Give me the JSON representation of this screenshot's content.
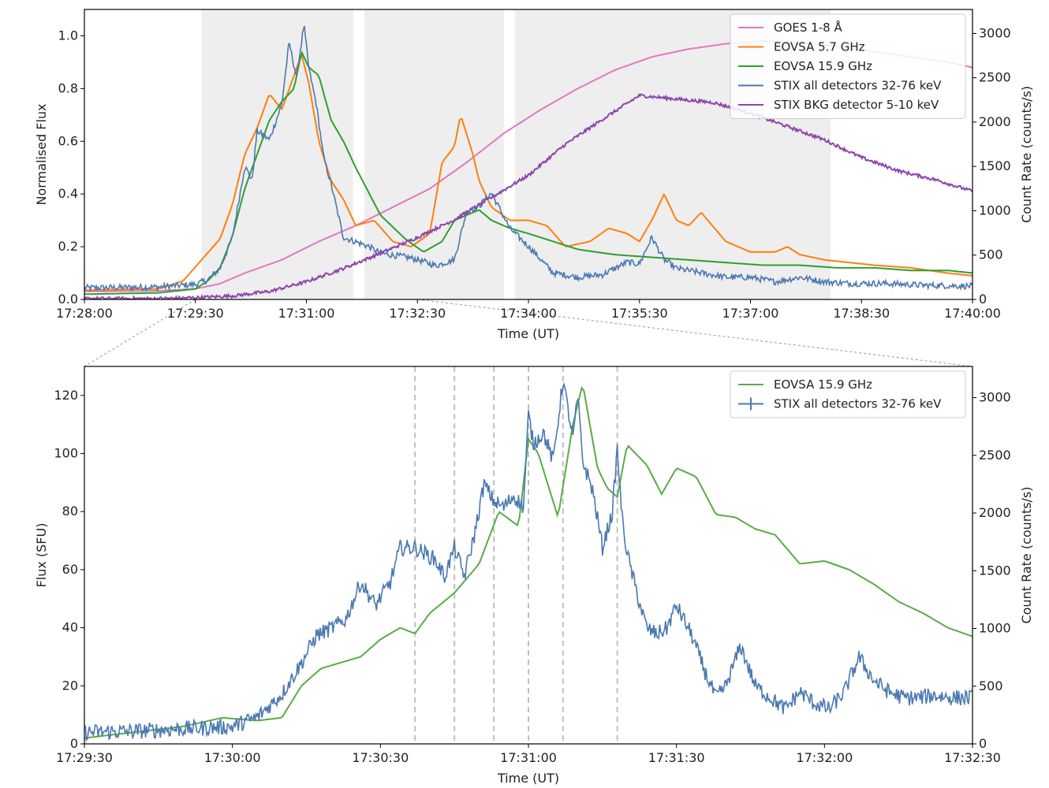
{
  "chart_data": [
    {
      "type": "line",
      "xlabel": "Time (UT)",
      "ylabel": "Normalised Flux",
      "y2label": "Count Rate (counts/s)",
      "x_ticks": [
        "17:28:00",
        "17:29:30",
        "17:31:00",
        "17:32:30",
        "17:34:00",
        "17:35:30",
        "17:37:00",
        "17:38:30",
        "17:40:00"
      ],
      "x_tick_seconds": [
        0,
        90,
        180,
        270,
        360,
        450,
        540,
        630,
        720
      ],
      "xlim_seconds": [
        0,
        720
      ],
      "y_ticks": [
        "0.0",
        "0.2",
        "0.4",
        "0.6",
        "0.8",
        "1.0"
      ],
      "y_tick_values": [
        0,
        0.2,
        0.4,
        0.6,
        0.8,
        1.0
      ],
      "ylim": [
        0,
        1.1
      ],
      "y2_ticks": [
        "0",
        "500",
        "1000",
        "1500",
        "2000",
        "2500",
        "3000"
      ],
      "y2_tick_values": [
        0,
        500,
        1000,
        1500,
        2000,
        2500,
        3000
      ],
      "y2lim": [
        0,
        3270
      ],
      "legend_position": "top-right",
      "shaded_intervals_seconds": [
        [
          95,
          218
        ],
        [
          227,
          340
        ],
        [
          349,
          605
        ]
      ],
      "series": [
        {
          "name": "GOES 1-8 Å",
          "color": "#e377c2",
          "axis": "left",
          "x": [
            0,
            60,
            90,
            110,
            130,
            160,
            190,
            220,
            250,
            280,
            310,
            340,
            370,
            400,
            430,
            460,
            490,
            520,
            550,
            580,
            610,
            640,
            670,
            700,
            720
          ],
          "y": [
            0.03,
            0.033,
            0.04,
            0.06,
            0.1,
            0.15,
            0.22,
            0.28,
            0.35,
            0.42,
            0.52,
            0.63,
            0.72,
            0.8,
            0.87,
            0.92,
            0.95,
            0.97,
            0.98,
            0.975,
            0.96,
            0.94,
            0.92,
            0.9,
            0.88
          ]
        },
        {
          "name": "EOVSA 5.7 GHz",
          "color": "#ff7f0e",
          "axis": "left",
          "x": [
            0,
            60,
            80,
            95,
            110,
            120,
            130,
            140,
            150,
            160,
            170,
            176,
            182,
            190,
            200,
            210,
            220,
            235,
            250,
            265,
            280,
            290,
            300,
            305,
            315,
            320,
            330,
            345,
            360,
            375,
            390,
            410,
            425,
            440,
            450,
            460,
            470,
            480,
            490,
            500,
            520,
            540,
            560,
            570,
            580,
            600,
            620,
            640,
            670,
            700,
            720
          ],
          "y": [
            0.035,
            0.04,
            0.07,
            0.15,
            0.23,
            0.36,
            0.55,
            0.65,
            0.78,
            0.72,
            0.85,
            0.93,
            0.82,
            0.6,
            0.45,
            0.38,
            0.28,
            0.3,
            0.22,
            0.2,
            0.25,
            0.52,
            0.58,
            0.7,
            0.55,
            0.45,
            0.35,
            0.3,
            0.3,
            0.28,
            0.2,
            0.22,
            0.27,
            0.25,
            0.22,
            0.3,
            0.4,
            0.3,
            0.28,
            0.33,
            0.22,
            0.18,
            0.18,
            0.2,
            0.17,
            0.15,
            0.14,
            0.13,
            0.12,
            0.1,
            0.09
          ]
        },
        {
          "name": "EOVSA 15.9 GHz",
          "color": "#2ca02c",
          "axis": "left",
          "x": [
            0,
            60,
            90,
            100,
            110,
            120,
            130,
            140,
            150,
            160,
            170,
            176,
            182,
            190,
            200,
            210,
            220,
            240,
            260,
            275,
            290,
            300,
            310,
            320,
            330,
            345,
            360,
            380,
            400,
            430,
            460,
            490,
            520,
            550,
            580,
            610,
            640,
            670,
            700,
            720
          ],
          "y": [
            0.02,
            0.025,
            0.04,
            0.07,
            0.12,
            0.24,
            0.42,
            0.55,
            0.68,
            0.75,
            0.8,
            0.94,
            0.88,
            0.85,
            0.68,
            0.6,
            0.5,
            0.32,
            0.23,
            0.18,
            0.22,
            0.3,
            0.32,
            0.34,
            0.3,
            0.27,
            0.25,
            0.22,
            0.19,
            0.17,
            0.16,
            0.15,
            0.14,
            0.13,
            0.13,
            0.12,
            0.12,
            0.11,
            0.11,
            0.1
          ]
        },
        {
          "name": "STIX all detectors 32-76 keV",
          "color": "#4a79b0",
          "axis": "right",
          "x": [
            0,
            60,
            90,
            100,
            110,
            120,
            130,
            136,
            140,
            150,
            160,
            166,
            172,
            178,
            182,
            188,
            194,
            200,
            210,
            220,
            230,
            240,
            250,
            260,
            270,
            285,
            300,
            310,
            320,
            330,
            345,
            360,
            380,
            400,
            420,
            440,
            450,
            460,
            470,
            480,
            500,
            520,
            540,
            560,
            580,
            600,
            620,
            650,
            680,
            720
          ],
          "y": [
            130,
            140,
            170,
            220,
            350,
            700,
            1500,
            1350,
            1900,
            1800,
            2200,
            2900,
            2500,
            3100,
            2600,
            2200,
            1600,
            1300,
            700,
            650,
            600,
            520,
            500,
            480,
            450,
            380,
            450,
            1000,
            1050,
            1200,
            800,
            600,
            300,
            250,
            280,
            420,
            400,
            700,
            450,
            350,
            300,
            250,
            250,
            200,
            250,
            200,
            180,
            180,
            160,
            150
          ]
        },
        {
          "name": "STIX BKG detector 5-10 keV",
          "color": "#8e44ad",
          "axis": "right",
          "x": [
            0,
            60,
            90,
            120,
            150,
            180,
            210,
            240,
            270,
            300,
            330,
            360,
            390,
            420,
            450,
            480,
            510,
            540,
            570,
            600,
            630,
            660,
            690,
            720
          ],
          "y": [
            10,
            10,
            20,
            40,
            90,
            200,
            350,
            520,
            700,
            900,
            1150,
            1400,
            1750,
            2030,
            2300,
            2260,
            2220,
            2100,
            1950,
            1800,
            1600,
            1450,
            1350,
            1220
          ]
        }
      ]
    },
    {
      "type": "line",
      "xlabel": "Time (UT)",
      "ylabel": "Flux (SFU)",
      "y2label": "Count Rate (counts/s)",
      "x_ticks": [
        "17:29:30",
        "17:30:00",
        "17:30:30",
        "17:31:00",
        "17:31:30",
        "17:32:00",
        "17:32:30"
      ],
      "x_tick_seconds": [
        0,
        30,
        60,
        90,
        120,
        150,
        180
      ],
      "xlim_seconds": [
        0,
        180
      ],
      "y_ticks": [
        "0",
        "20",
        "40",
        "60",
        "80",
        "100",
        "120"
      ],
      "y_tick_values": [
        0,
        20,
        40,
        60,
        80,
        100,
        120
      ],
      "ylim": [
        0,
        130
      ],
      "y2_ticks": [
        "0",
        "500",
        "1000",
        "1500",
        "2000",
        "2500",
        "3000"
      ],
      "y2_tick_values": [
        0,
        500,
        1000,
        1500,
        2000,
        2500,
        3000
      ],
      "y2lim": [
        0,
        3270
      ],
      "legend_position": "top-right",
      "vertical_lines_seconds": [
        67,
        75,
        83,
        90,
        97,
        108
      ],
      "series": [
        {
          "name": "EOVSA 15.9 GHz",
          "color": "#5aab48",
          "axis": "left",
          "x": [
            0,
            10,
            20,
            28,
            35,
            40,
            44,
            48,
            52,
            56,
            60,
            64,
            67,
            70,
            75,
            80,
            84,
            88,
            90,
            92,
            96,
            99,
            101,
            104,
            106,
            108,
            110,
            114,
            117,
            120,
            124,
            128,
            132,
            136,
            140,
            145,
            150,
            155,
            160,
            165,
            170,
            175,
            180
          ],
          "y": [
            2,
            4,
            6,
            9,
            8,
            9,
            20,
            26,
            28,
            30,
            36,
            40,
            38,
            45,
            52,
            62,
            80,
            75,
            105,
            100,
            78,
            110,
            124,
            95,
            88,
            85,
            103,
            96,
            86,
            95,
            92,
            79,
            78,
            74,
            72,
            62,
            63,
            60,
            55,
            49,
            45,
            40,
            37
          ]
        },
        {
          "name": "STIX all detectors 32-76 keV",
          "color": "#4a79b0",
          "axis": "right",
          "x": [
            0,
            10,
            20,
            30,
            35,
            40,
            44,
            47,
            50,
            53,
            56,
            59,
            62,
            64,
            67,
            69,
            71,
            73,
            75,
            77,
            79,
            81,
            83,
            85,
            87,
            89,
            90,
            91,
            93,
            95,
            97,
            99,
            100,
            101,
            103,
            105,
            107,
            108,
            109,
            110,
            112,
            114,
            116,
            118,
            120,
            123,
            126,
            128,
            130,
            133,
            136,
            139,
            142,
            145,
            148,
            151,
            154,
            157,
            160,
            163,
            166,
            169,
            172,
            176,
            180
          ],
          "y": [
            100,
            110,
            130,
            150,
            230,
            430,
            700,
            940,
            1000,
            1080,
            1400,
            1200,
            1400,
            1700,
            1700,
            1650,
            1600,
            1450,
            1700,
            1450,
            1800,
            2250,
            2100,
            2050,
            2150,
            2050,
            2850,
            2600,
            2700,
            2450,
            3150,
            2650,
            3000,
            2450,
            2200,
            1700,
            2000,
            2550,
            1950,
            1650,
            1300,
            1000,
            950,
            1000,
            1200,
            950,
            600,
            400,
            500,
            850,
            500,
            400,
            300,
            450,
            350,
            300,
            450,
            750,
            550,
            450,
            400,
            400,
            420,
            400,
            400
          ]
        }
      ]
    }
  ]
}
